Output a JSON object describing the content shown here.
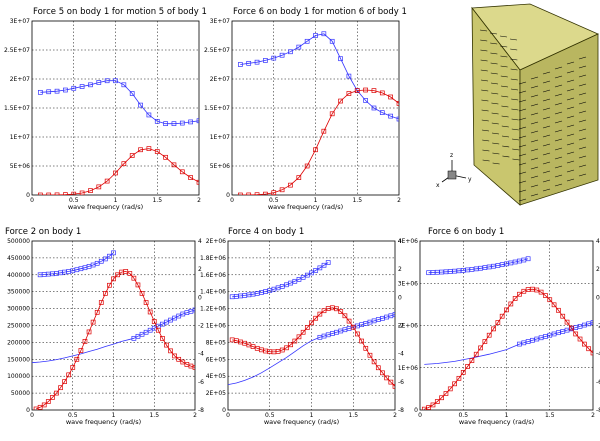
{
  "chart_data": [
    {
      "id": "p1",
      "type": "line",
      "title": "Force 5 on body 1 for motion 5 of body 1",
      "xlabel": "wave frequency (rad/s)",
      "xlim": [
        0,
        2
      ],
      "ylim": [
        0,
        30000000
      ],
      "yticks": [
        "0",
        "5E+06",
        "1E+07",
        "1.5E+07",
        "2E+07",
        "2.5E+07",
        "3E+07"
      ],
      "grid": true,
      "series": [
        {
          "color": "#3333ff",
          "marker": "square",
          "x": [
            0.1,
            0.2,
            0.3,
            0.4,
            0.5,
            0.6,
            0.7,
            0.8,
            0.9,
            1.0,
            1.1,
            1.2,
            1.3,
            1.4,
            1.5,
            1.6,
            1.7,
            1.8,
            1.9,
            2.0
          ],
          "y": [
            17700000,
            17800000,
            17900000,
            18100000,
            18400000,
            18700000,
            19000000,
            19400000,
            19700000,
            19700000,
            19000000,
            17500000,
            15500000,
            13800000,
            12700000,
            12300000,
            12300000,
            12400000,
            12600000,
            12800000
          ]
        },
        {
          "color": "#dd0000",
          "marker": "square",
          "x": [
            0.1,
            0.2,
            0.3,
            0.4,
            0.5,
            0.6,
            0.7,
            0.8,
            0.9,
            1.0,
            1.1,
            1.2,
            1.3,
            1.4,
            1.5,
            1.6,
            1.7,
            1.8,
            1.9,
            2.0
          ],
          "y": [
            0,
            0,
            20000,
            60000,
            150000,
            350000,
            750000,
            1400000,
            2400000,
            3800000,
            5400000,
            6800000,
            7800000,
            8000000,
            7500000,
            6500000,
            5200000,
            4000000,
            3000000,
            2200000
          ]
        }
      ]
    },
    {
      "id": "p2",
      "type": "line",
      "title": "Force 6 on body 1 for motion 6 of body 1",
      "xlabel": "wave frequency (rad/s)",
      "xlim": [
        0,
        2
      ],
      "ylim": [
        0,
        30000000
      ],
      "yticks": [
        "0",
        "5E+06",
        "1E+07",
        "1.5E+07",
        "2E+07",
        "2.5E+07",
        "3E+07"
      ],
      "grid": true,
      "series": [
        {
          "color": "#3333ff",
          "marker": "square",
          "x": [
            0.1,
            0.2,
            0.3,
            0.4,
            0.5,
            0.6,
            0.7,
            0.8,
            0.9,
            1.0,
            1.1,
            1.2,
            1.3,
            1.4,
            1.5,
            1.6,
            1.7,
            1.8,
            1.9,
            2.0
          ],
          "y": [
            22500000,
            22700000,
            22900000,
            23200000,
            23600000,
            24100000,
            24700000,
            25500000,
            26500000,
            27500000,
            27800000,
            26500000,
            23500000,
            20500000,
            18000000,
            16300000,
            15000000,
            14200000,
            13600000,
            13100000
          ]
        },
        {
          "color": "#dd0000",
          "marker": "square",
          "x": [
            0.1,
            0.2,
            0.3,
            0.4,
            0.5,
            0.6,
            0.7,
            0.8,
            0.9,
            1.0,
            1.1,
            1.2,
            1.3,
            1.4,
            1.5,
            1.6,
            1.7,
            1.8,
            1.9,
            2.0
          ],
          "y": [
            0,
            10000,
            50000,
            150000,
            400000,
            900000,
            1700000,
            3000000,
            5000000,
            7800000,
            11000000,
            14000000,
            16200000,
            17500000,
            18000000,
            18100000,
            18000000,
            17600000,
            16900000,
            15800000
          ]
        }
      ]
    },
    {
      "id": "p3",
      "type": "line",
      "title": "Force 2 on body 1",
      "xlabel": "wave frequency (rad/s)",
      "xlim": [
        0,
        2
      ],
      "ylim": [
        0,
        500000
      ],
      "yticks": [
        "0",
        "50000",
        "100000",
        "150000",
        "200000",
        "250000",
        "300000",
        "350000",
        "400000",
        "450000",
        "500000"
      ],
      "y2lim": [
        -8,
        4
      ],
      "y2ticks": [
        "-8",
        "-6",
        "-4",
        "-2",
        "0",
        "2",
        "4"
      ],
      "grid": true,
      "series": [
        {
          "color": "#3333ff",
          "marker": "square",
          "axis": "left",
          "x": [
            0.1,
            0.15,
            0.2,
            0.25,
            0.3,
            0.35,
            0.4,
            0.45,
            0.5,
            0.55,
            0.6,
            0.65,
            0.7,
            0.75,
            0.8,
            0.85,
            0.9,
            0.95,
            1.0
          ],
          "y": [
            400000,
            401000,
            402000,
            403000,
            404000,
            406000,
            408000,
            410000,
            412000,
            415000,
            418000,
            421000,
            425000,
            429000,
            434000,
            440000,
            447000,
            455000,
            465000
          ]
        },
        {
          "color": "#3333ff",
          "marker": "square",
          "axis": "left",
          "x": [
            1.25,
            1.3,
            1.35,
            1.4,
            1.45,
            1.5,
            1.55,
            1.6,
            1.65,
            1.7,
            1.75,
            1.8,
            1.85,
            1.9,
            1.95,
            2.0
          ],
          "y": [
            212000,
            218000,
            224000,
            230000,
            236000,
            242000,
            248000,
            254000,
            260000,
            266000,
            272000,
            278000,
            284000,
            288000,
            292000,
            296000
          ]
        },
        {
          "color": "#3333ff",
          "marker": "none",
          "axis": "left",
          "x": [
            0,
            0.1,
            0.2,
            0.3,
            0.4,
            0.5,
            0.6,
            0.7,
            0.8,
            0.9,
            1.0,
            1.1,
            1.25
          ],
          "y": [
            140000,
            142000,
            145000,
            149000,
            154000,
            160000,
            166000,
            173000,
            180000,
            188000,
            195000,
            203000,
            212000
          ]
        },
        {
          "color": "#dd0000",
          "marker": "square",
          "axis": "left",
          "x": [
            0.05,
            0.1,
            0.15,
            0.2,
            0.25,
            0.3,
            0.35,
            0.4,
            0.45,
            0.5,
            0.55,
            0.6,
            0.65,
            0.7,
            0.75,
            0.8,
            0.85,
            0.9,
            0.95,
            1.0,
            1.05,
            1.1,
            1.15,
            1.2,
            1.25,
            1.3,
            1.35,
            1.4,
            1.45,
            1.5,
            1.55,
            1.6,
            1.65,
            1.7,
            1.75,
            1.8,
            1.85,
            1.9,
            1.95,
            2.0
          ],
          "y": [
            3000,
            8000,
            15000,
            25000,
            37000,
            50000,
            66000,
            84000,
            104000,
            126000,
            150000,
            176000,
            203000,
            231000,
            260000,
            289000,
            318000,
            345000,
            369000,
            388000,
            400000,
            408000,
            410000,
            404000,
            390000,
            370000,
            345000,
            318000,
            290000,
            262000,
            236000,
            212000,
            192000,
            175000,
            160000,
            150000,
            142000,
            135000,
            130000,
            126000
          ]
        }
      ]
    },
    {
      "id": "p4",
      "type": "line",
      "title": "Force 4 on body 1",
      "xlabel": "wave frequency (rad/s)",
      "xlim": [
        0,
        2
      ],
      "ylim": [
        0,
        2000000
      ],
      "yticks": [
        "0",
        "2E+05",
        "4E+05",
        "6E+05",
        "8E+05",
        "1E+06",
        "1.2E+06",
        "1.4E+06",
        "1.6E+06",
        "1.8E+06",
        "2E+06"
      ],
      "y2lim": [
        -8,
        4
      ],
      "y2ticks": [
        "-8",
        "-6",
        "-4",
        "-2",
        "0",
        "2",
        "4"
      ],
      "grid": true,
      "series": [
        {
          "color": "#3333ff",
          "marker": "square",
          "axis": "left",
          "x": [
            0.05,
            0.1,
            0.15,
            0.2,
            0.25,
            0.3,
            0.35,
            0.4,
            0.45,
            0.5,
            0.55,
            0.6,
            0.65,
            0.7,
            0.75,
            0.8,
            0.85,
            0.9,
            0.95,
            1.0,
            1.05,
            1.1,
            1.15,
            1.2
          ],
          "y": [
            1340000,
            1345000,
            1350000,
            1356000,
            1363000,
            1371000,
            1380000,
            1390000,
            1402000,
            1415000,
            1430000,
            1446000,
            1463000,
            1482000,
            1502000,
            1523000,
            1546000,
            1570000,
            1596000,
            1623000,
            1652000,
            1682000,
            1713000,
            1745000
          ]
        },
        {
          "color": "#3333ff",
          "marker": "square",
          "axis": "left",
          "x": [
            1.1,
            1.15,
            1.2,
            1.25,
            1.3,
            1.35,
            1.4,
            1.45,
            1.5,
            1.55,
            1.6,
            1.65,
            1.7,
            1.75,
            1.8,
            1.85,
            1.9,
            1.95,
            2.0
          ],
          "y": [
            860000,
            875000,
            890000,
            905000,
            920000,
            935000,
            950000,
            965000,
            980000,
            995000,
            1010000,
            1025000,
            1040000,
            1055000,
            1070000,
            1085000,
            1100000,
            1115000,
            1130000
          ]
        },
        {
          "color": "#3333ff",
          "marker": "none",
          "axis": "left",
          "x": [
            0,
            0.1,
            0.2,
            0.3,
            0.4,
            0.5,
            0.6,
            0.7,
            0.8,
            0.9,
            1.0,
            1.1
          ],
          "y": [
            300000,
            320000,
            350000,
            390000,
            440000,
            500000,
            560000,
            620000,
            690000,
            760000,
            820000,
            860000
          ]
        },
        {
          "color": "#dd0000",
          "marker": "square",
          "axis": "left",
          "x": [
            0.05,
            0.1,
            0.15,
            0.2,
            0.25,
            0.3,
            0.35,
            0.4,
            0.45,
            0.5,
            0.55,
            0.6,
            0.65,
            0.7,
            0.75,
            0.8,
            0.85,
            0.9,
            0.95,
            1.0,
            1.05,
            1.1,
            1.15,
            1.2,
            1.25,
            1.3,
            1.35,
            1.4,
            1.45,
            1.5,
            1.55,
            1.6,
            1.65,
            1.7,
            1.75,
            1.8,
            1.85,
            1.9,
            1.95,
            2.0
          ],
          "y": [
            830000,
            820000,
            805000,
            790000,
            770000,
            750000,
            730000,
            712000,
            698000,
            690000,
            688000,
            694000,
            710000,
            736000,
            772000,
            816000,
            866000,
            920000,
            976000,
            1032000,
            1086000,
            1135000,
            1175000,
            1200000,
            1210000,
            1198000,
            1165000,
            1115000,
            1052000,
            980000,
            900000,
            816000,
            730000,
            648000,
            570000,
            500000,
            440000,
            380000,
            330000,
            280000
          ]
        }
      ]
    },
    {
      "id": "p5",
      "type": "line",
      "title": "Force 6 on body 1",
      "xlabel": "wave frequency (rad/s)",
      "xlim": [
        0,
        2
      ],
      "ylim": [
        0,
        4000000
      ],
      "yticks": [
        "0",
        "1E+06",
        "2E+06",
        "3E+06",
        "4E+06"
      ],
      "y2lim": [
        -8,
        4
      ],
      "y2ticks": [
        "-8",
        "-6",
        "-4",
        "-2",
        "0",
        "2",
        "4"
      ],
      "grid": true,
      "series": [
        {
          "color": "#3333ff",
          "marker": "square",
          "axis": "left",
          "x": [
            0.1,
            0.15,
            0.2,
            0.25,
            0.3,
            0.35,
            0.4,
            0.45,
            0.5,
            0.55,
            0.6,
            0.65,
            0.7,
            0.75,
            0.8,
            0.85,
            0.9,
            0.95,
            1.0,
            1.05,
            1.1,
            1.15,
            1.2,
            1.25
          ],
          "y": [
            3250000,
            3255000,
            3260000,
            3265000,
            3271000,
            3278000,
            3286000,
            3295000,
            3305000,
            3316000,
            3328000,
            3341000,
            3355000,
            3370000,
            3386000,
            3403000,
            3421000,
            3440000,
            3460000,
            3481000,
            3503000,
            3526000,
            3550000,
            3580000
          ]
        },
        {
          "color": "#3333ff",
          "marker": "square",
          "axis": "left",
          "x": [
            1.15,
            1.2,
            1.25,
            1.3,
            1.35,
            1.4,
            1.45,
            1.5,
            1.55,
            1.6,
            1.65,
            1.7,
            1.75,
            1.8,
            1.85,
            1.9,
            1.95,
            2.0
          ],
          "y": [
            1560000,
            1590000,
            1620000,
            1650000,
            1680000,
            1710000,
            1740000,
            1770000,
            1800000,
            1830000,
            1860000,
            1890000,
            1920000,
            1950000,
            1980000,
            2010000,
            2040000,
            2070000
          ]
        },
        {
          "color": "#3333ff",
          "marker": "none",
          "axis": "left",
          "x": [
            0.05,
            0.2,
            0.4,
            0.6,
            0.8,
            1.0,
            1.15
          ],
          "y": [
            1080000,
            1100000,
            1150000,
            1230000,
            1320000,
            1430000,
            1560000
          ]
        },
        {
          "color": "#dd0000",
          "marker": "square",
          "axis": "left",
          "x": [
            0.05,
            0.1,
            0.15,
            0.2,
            0.25,
            0.3,
            0.35,
            0.4,
            0.45,
            0.5,
            0.55,
            0.6,
            0.65,
            0.7,
            0.75,
            0.8,
            0.85,
            0.9,
            0.95,
            1.0,
            1.05,
            1.1,
            1.15,
            1.2,
            1.25,
            1.3,
            1.35,
            1.4,
            1.45,
            1.5,
            1.55,
            1.6,
            1.65,
            1.7,
            1.75,
            1.8,
            1.85,
            1.9,
            1.95,
            2.0
          ],
          "y": [
            20000,
            60000,
            120000,
            200000,
            290000,
            390000,
            500000,
            620000,
            750000,
            890000,
            1030000,
            1170000,
            1320000,
            1470000,
            1620000,
            1770000,
            1920000,
            2070000,
            2220000,
            2370000,
            2510000,
            2640000,
            2740000,
            2810000,
            2850000,
            2860000,
            2840000,
            2790000,
            2710000,
            2610000,
            2490000,
            2360000,
            2220000,
            2080000,
            1940000,
            1800000,
            1680000,
            1560000,
            1450000,
            1350000
          ]
        }
      ]
    }
  ],
  "axis_triad": {
    "z": "z",
    "x": "x",
    "y": "y"
  },
  "colors": {
    "prism_face": "#c9c66e",
    "prism_top": "#d9d68a",
    "prism_edge": "#333300",
    "arrow": "#000000"
  }
}
